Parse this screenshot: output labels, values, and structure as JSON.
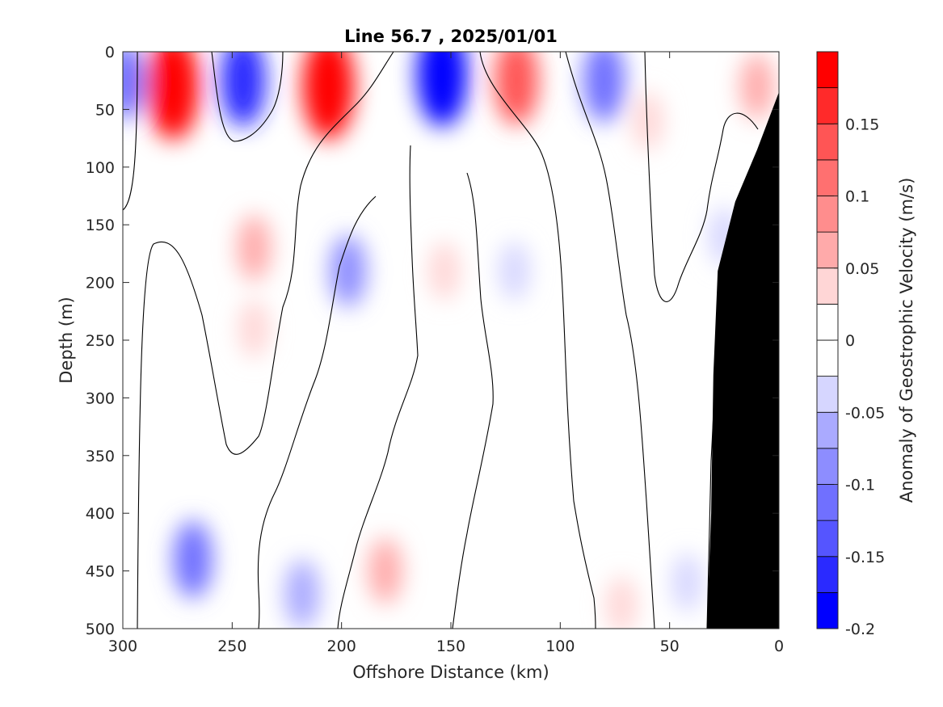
{
  "chart_data": {
    "type": "heatmap",
    "title": "Line 56.7 , 2025/01/01",
    "xlabel": "Offshore Distance (km)",
    "ylabel": "Depth (m)",
    "colorbar_label": "Anomaly of Geostrophic Velocity (m/s)",
    "x_range": [
      300,
      0
    ],
    "y_range": [
      0,
      500
    ],
    "x_reversed": true,
    "y_reversed": true,
    "x_ticks": [
      300,
      250,
      200,
      150,
      100,
      50,
      0
    ],
    "y_ticks": [
      0,
      50,
      100,
      150,
      200,
      250,
      300,
      350,
      400,
      450,
      500
    ],
    "colorbar_range": [
      -0.2,
      0.2
    ],
    "colorbar_ticks": [
      {
        "value": 0.15,
        "label": "0.15"
      },
      {
        "value": 0.1,
        "label": "0.1"
      },
      {
        "value": 0.05,
        "label": "0.05"
      },
      {
        "value": 0,
        "label": "0"
      },
      {
        "value": -0.05,
        "label": "-0.05"
      },
      {
        "value": -0.1,
        "label": "-0.1"
      },
      {
        "value": -0.15,
        "label": "-0.15"
      },
      {
        "value": -0.2,
        "label": "-0.2"
      }
    ],
    "colorbar_levels": [
      {
        "from": -0.2,
        "to": -0.175,
        "color": "#0000ff"
      },
      {
        "from": -0.175,
        "to": -0.15,
        "color": "#2a2aff"
      },
      {
        "from": -0.15,
        "to": -0.125,
        "color": "#5555ff"
      },
      {
        "from": -0.125,
        "to": -0.1,
        "color": "#7070ff"
      },
      {
        "from": -0.1,
        "to": -0.075,
        "color": "#8d8dff"
      },
      {
        "from": -0.075,
        "to": -0.05,
        "color": "#aaaaff"
      },
      {
        "from": -0.05,
        "to": -0.025,
        "color": "#d6d6ff"
      },
      {
        "from": -0.025,
        "to": 0,
        "color": "#ffffff"
      },
      {
        "from": 0,
        "to": 0.025,
        "color": "#ffffff"
      },
      {
        "from": 0.025,
        "to": 0.05,
        "color": "#ffd6d6"
      },
      {
        "from": 0.05,
        "to": 0.075,
        "color": "#ffaaaa"
      },
      {
        "from": 0.075,
        "to": 0.1,
        "color": "#ff8d8d"
      },
      {
        "from": 0.1,
        "to": 0.125,
        "color": "#ff7070"
      },
      {
        "from": 0.125,
        "to": 0.15,
        "color": "#ff5555"
      },
      {
        "from": 0.15,
        "to": 0.175,
        "color": "#ff2a2a"
      },
      {
        "from": 0.175,
        "to": 0.2,
        "color": "#ff0000"
      }
    ],
    "anomaly_cells": [
      {
        "x": 277,
        "y": 30,
        "value": 0.2
      },
      {
        "x": 206,
        "y": 30,
        "value": 0.2
      },
      {
        "x": 120,
        "y": 25,
        "value": 0.14
      },
      {
        "x": 10,
        "y": 30,
        "value": 0.06
      },
      {
        "x": 60,
        "y": 60,
        "value": 0.035
      },
      {
        "x": 240,
        "y": 170,
        "value": 0.06
      },
      {
        "x": 240,
        "y": 240,
        "value": 0.035
      },
      {
        "x": 153,
        "y": 190,
        "value": 0.035
      },
      {
        "x": 180,
        "y": 450,
        "value": 0.06
      },
      {
        "x": 72,
        "y": 480,
        "value": 0.035
      },
      {
        "x": 245,
        "y": 25,
        "value": -0.15
      },
      {
        "x": 154,
        "y": 20,
        "value": -0.19
      },
      {
        "x": 80,
        "y": 25,
        "value": -0.12
      },
      {
        "x": 299,
        "y": 25,
        "value": -0.1
      },
      {
        "x": 197,
        "y": 190,
        "value": -0.08
      },
      {
        "x": 268,
        "y": 440,
        "value": -0.1
      },
      {
        "x": 218,
        "y": 470,
        "value": -0.07
      },
      {
        "x": 121,
        "y": 190,
        "value": -0.035
      },
      {
        "x": 25,
        "y": 160,
        "value": -0.035
      },
      {
        "x": 42,
        "y": 460,
        "value": -0.035
      }
    ],
    "bathymetry": [
      {
        "x": 0,
        "y": 35
      },
      {
        "x": 5,
        "y": 60
      },
      {
        "x": 10,
        "y": 85
      },
      {
        "x": 20,
        "y": 130
      },
      {
        "x": 28,
        "y": 190
      },
      {
        "x": 30,
        "y": 280
      },
      {
        "x": 31,
        "y": 400
      },
      {
        "x": 33,
        "y": 500
      }
    ],
    "bathymetry_color": "#000000"
  }
}
